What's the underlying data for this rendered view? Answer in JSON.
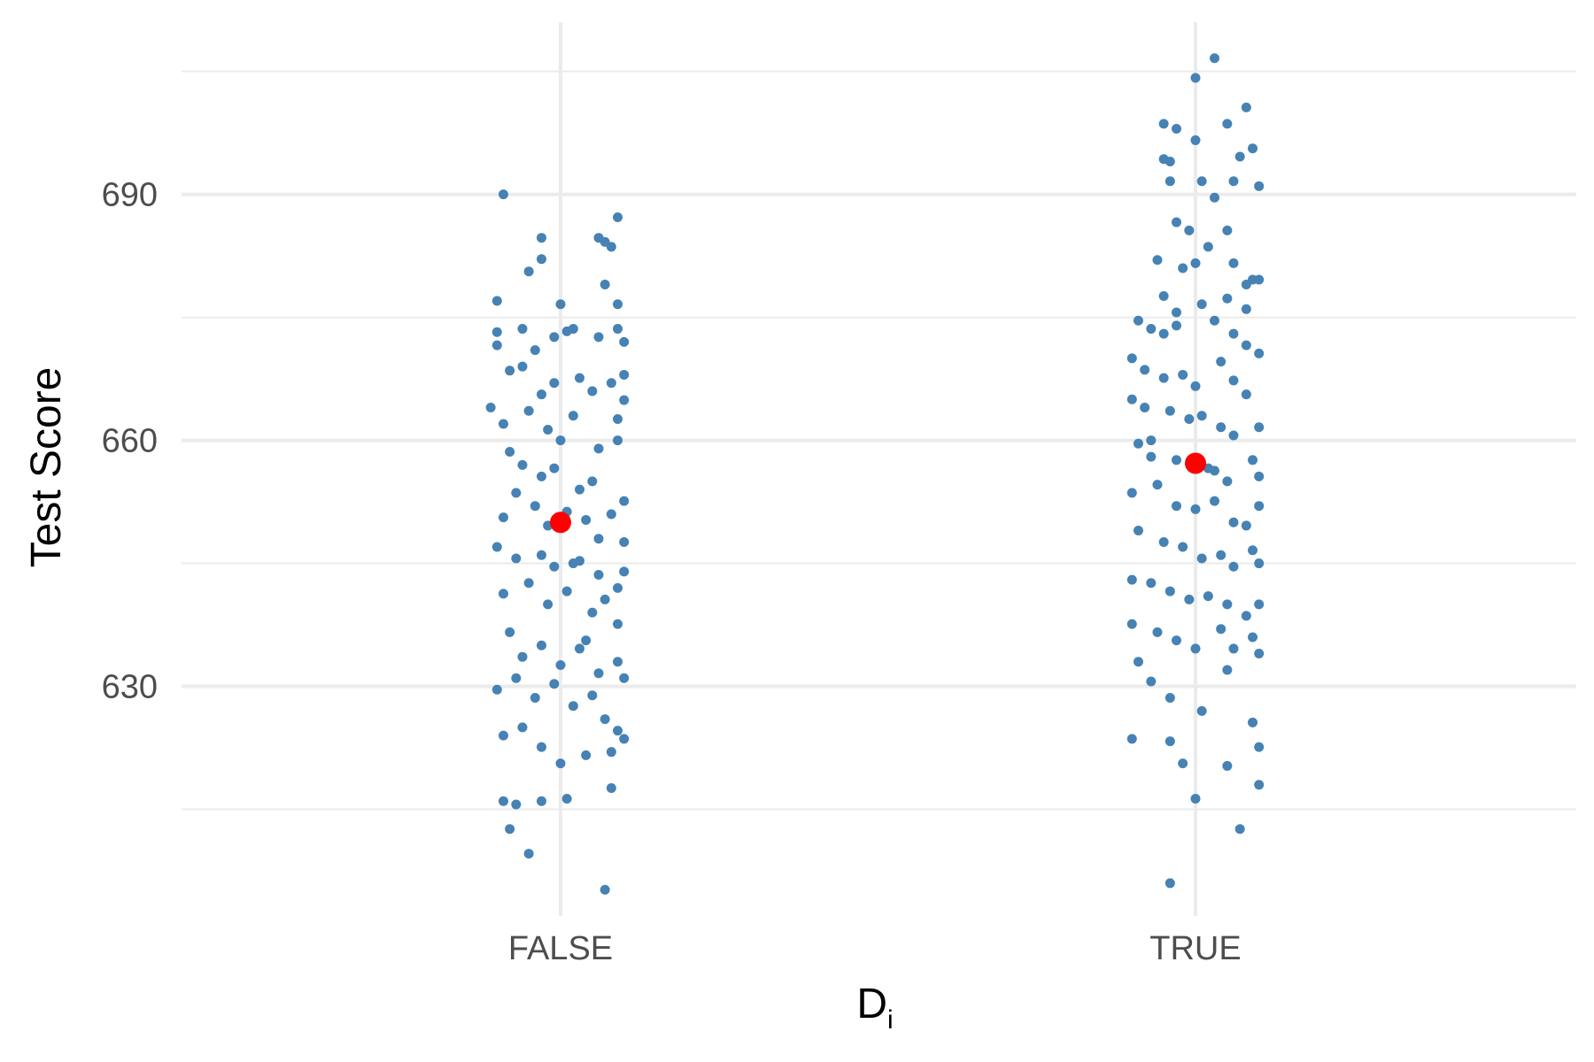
{
  "chart_data": {
    "type": "scatter",
    "title": "",
    "xlabel": "D",
    "xlabel_subscript": "i",
    "ylabel": "Test Score",
    "categories": [
      "FALSE",
      "TRUE"
    ],
    "yticks": [
      630,
      660,
      690
    ],
    "ylim": [
      602,
      711
    ],
    "grid": true,
    "legend": "none",
    "point_color": "#4682B4",
    "mean_color": "#FF0000",
    "means": [
      650.0,
      657.2
    ],
    "series": [
      {
        "category": "FALSE",
        "points": [
          [
            -0.09,
            690.0
          ],
          [
            -0.05,
            680.6
          ],
          [
            -0.03,
            684.7
          ],
          [
            -0.03,
            682.1
          ],
          [
            0.06,
            684.7
          ],
          [
            0.07,
            684.2
          ],
          [
            0.08,
            683.6
          ],
          [
            0.09,
            687.2
          ],
          [
            -0.1,
            677.0
          ],
          [
            0.0,
            676.6
          ],
          [
            0.07,
            679.0
          ],
          [
            0.09,
            676.6
          ],
          [
            -0.1,
            673.2
          ],
          [
            -0.1,
            671.6
          ],
          [
            -0.06,
            673.6
          ],
          [
            -0.04,
            671.0
          ],
          [
            -0.01,
            672.6
          ],
          [
            0.02,
            673.6
          ],
          [
            0.01,
            673.3
          ],
          [
            0.06,
            672.6
          ],
          [
            0.09,
            673.6
          ],
          [
            0.1,
            672.0
          ],
          [
            0.1,
            668.0
          ],
          [
            0.08,
            667.0
          ],
          [
            -0.08,
            668.5
          ],
          [
            -0.06,
            669.0
          ],
          [
            -0.03,
            665.6
          ],
          [
            -0.01,
            667.0
          ],
          [
            0.03,
            667.6
          ],
          [
            0.05,
            666.0
          ],
          [
            0.1,
            664.9
          ],
          [
            0.09,
            662.6
          ],
          [
            -0.11,
            664.0
          ],
          [
            -0.09,
            662.0
          ],
          [
            -0.05,
            663.6
          ],
          [
            -0.02,
            661.3
          ],
          [
            0.0,
            660.0
          ],
          [
            0.02,
            663.0
          ],
          [
            0.06,
            659.0
          ],
          [
            0.09,
            660.0
          ],
          [
            -0.08,
            658.6
          ],
          [
            -0.06,
            657.0
          ],
          [
            -0.03,
            655.6
          ],
          [
            -0.01,
            656.6
          ],
          [
            0.03,
            654.0
          ],
          [
            0.05,
            655.0
          ],
          [
            0.08,
            651.0
          ],
          [
            0.1,
            652.6
          ],
          [
            -0.09,
            650.6
          ],
          [
            -0.07,
            653.6
          ],
          [
            -0.04,
            652.0
          ],
          [
            -0.02,
            649.6
          ],
          [
            0.01,
            651.3
          ],
          [
            0.04,
            650.3
          ],
          [
            0.06,
            648.0
          ],
          [
            0.1,
            647.6
          ],
          [
            -0.1,
            647.0
          ],
          [
            -0.07,
            645.6
          ],
          [
            -0.03,
            646.0
          ],
          [
            -0.01,
            644.6
          ],
          [
            0.03,
            645.3
          ],
          [
            0.06,
            643.6
          ],
          [
            0.09,
            642.0
          ],
          [
            0.1,
            644.0
          ],
          [
            -0.09,
            641.3
          ],
          [
            -0.05,
            642.6
          ],
          [
            -0.02,
            640.0
          ],
          [
            0.01,
            641.6
          ],
          [
            0.05,
            639.0
          ],
          [
            0.07,
            640.6
          ],
          [
            0.09,
            637.6
          ],
          [
            0.04,
            635.6
          ],
          [
            -0.08,
            636.6
          ],
          [
            -0.06,
            633.6
          ],
          [
            -0.03,
            635.0
          ],
          [
            0.0,
            632.6
          ],
          [
            0.03,
            634.6
          ],
          [
            0.06,
            631.6
          ],
          [
            0.09,
            633.0
          ],
          [
            0.1,
            631.0
          ],
          [
            -0.1,
            629.6
          ],
          [
            -0.07,
            631.0
          ],
          [
            -0.04,
            628.6
          ],
          [
            -0.01,
            630.3
          ],
          [
            0.02,
            627.6
          ],
          [
            0.05,
            628.9
          ],
          [
            0.07,
            626.0
          ],
          [
            0.09,
            624.6
          ],
          [
            -0.09,
            624.0
          ],
          [
            -0.06,
            625.0
          ],
          [
            -0.03,
            622.6
          ],
          [
            0.0,
            620.6
          ],
          [
            0.04,
            621.6
          ],
          [
            0.08,
            622.0
          ],
          [
            0.1,
            623.6
          ],
          [
            0.08,
            617.6
          ],
          [
            -0.09,
            616.0
          ],
          [
            -0.07,
            615.6
          ],
          [
            -0.03,
            616.0
          ],
          [
            0.01,
            616.3
          ],
          [
            -0.08,
            612.6
          ],
          [
            -0.05,
            609.6
          ],
          [
            0.07,
            605.2
          ],
          [
            0.02,
            645.0
          ]
        ]
      },
      {
        "category": "TRUE",
        "points": [
          [
            0.03,
            706.6
          ],
          [
            0.0,
            704.2
          ],
          [
            0.08,
            700.6
          ],
          [
            0.05,
            698.6
          ],
          [
            -0.05,
            698.6
          ],
          [
            -0.03,
            698.0
          ],
          [
            0.0,
            696.6
          ],
          [
            0.09,
            695.6
          ],
          [
            0.07,
            694.6
          ],
          [
            -0.05,
            694.3
          ],
          [
            -0.04,
            694.0
          ],
          [
            -0.04,
            691.6
          ],
          [
            0.01,
            691.6
          ],
          [
            0.06,
            691.6
          ],
          [
            0.1,
            691.0
          ],
          [
            0.03,
            689.6
          ],
          [
            -0.03,
            686.6
          ],
          [
            -0.01,
            685.6
          ],
          [
            0.05,
            685.6
          ],
          [
            0.02,
            683.6
          ],
          [
            -0.06,
            682.0
          ],
          [
            0.0,
            681.6
          ],
          [
            0.06,
            681.6
          ],
          [
            -0.02,
            681.0
          ],
          [
            0.09,
            679.6
          ],
          [
            0.08,
            679.0
          ],
          [
            0.1,
            679.6
          ],
          [
            -0.05,
            677.6
          ],
          [
            -0.03,
            675.6
          ],
          [
            0.01,
            676.6
          ],
          [
            0.05,
            677.3
          ],
          [
            0.08,
            676.0
          ],
          [
            -0.09,
            674.6
          ],
          [
            -0.07,
            673.6
          ],
          [
            -0.05,
            673.0
          ],
          [
            -0.03,
            674.0
          ],
          [
            0.03,
            674.6
          ],
          [
            0.06,
            673.0
          ],
          [
            0.08,
            671.6
          ],
          [
            0.1,
            670.6
          ],
          [
            -0.1,
            670.0
          ],
          [
            -0.08,
            668.6
          ],
          [
            -0.05,
            667.6
          ],
          [
            -0.02,
            668.0
          ],
          [
            0.0,
            666.6
          ],
          [
            0.04,
            669.6
          ],
          [
            0.06,
            667.3
          ],
          [
            0.08,
            665.6
          ],
          [
            -0.1,
            665.0
          ],
          [
            -0.08,
            664.0
          ],
          [
            -0.04,
            663.6
          ],
          [
            -0.01,
            662.6
          ],
          [
            0.01,
            663.0
          ],
          [
            0.04,
            661.6
          ],
          [
            0.06,
            660.6
          ],
          [
            0.1,
            661.6
          ],
          [
            -0.09,
            659.6
          ],
          [
            -0.07,
            658.0
          ],
          [
            -0.03,
            657.6
          ],
          [
            0.02,
            656.6
          ],
          [
            0.03,
            656.3
          ],
          [
            0.05,
            655.0
          ],
          [
            0.09,
            657.6
          ],
          [
            0.1,
            655.6
          ],
          [
            -0.1,
            653.6
          ],
          [
            -0.06,
            654.6
          ],
          [
            -0.03,
            652.0
          ],
          [
            0.0,
            651.6
          ],
          [
            0.03,
            652.6
          ],
          [
            0.06,
            650.0
          ],
          [
            0.08,
            649.6
          ],
          [
            0.1,
            652.0
          ],
          [
            -0.09,
            649.0
          ],
          [
            -0.05,
            647.6
          ],
          [
            -0.02,
            647.0
          ],
          [
            0.01,
            645.6
          ],
          [
            0.04,
            646.0
          ],
          [
            0.06,
            644.6
          ],
          [
            0.09,
            646.6
          ],
          [
            0.1,
            645.0
          ],
          [
            -0.1,
            643.0
          ],
          [
            -0.07,
            642.6
          ],
          [
            -0.04,
            641.6
          ],
          [
            -0.01,
            640.6
          ],
          [
            0.02,
            641.0
          ],
          [
            0.05,
            640.0
          ],
          [
            0.08,
            638.6
          ],
          [
            0.1,
            640.0
          ],
          [
            -0.1,
            637.6
          ],
          [
            -0.06,
            636.6
          ],
          [
            -0.03,
            635.6
          ],
          [
            0.0,
            634.6
          ],
          [
            0.04,
            637.0
          ],
          [
            0.06,
            634.6
          ],
          [
            0.09,
            636.0
          ],
          [
            0.1,
            634.0
          ],
          [
            -0.09,
            633.0
          ],
          [
            -0.07,
            630.6
          ],
          [
            -0.04,
            628.6
          ],
          [
            0.01,
            627.0
          ],
          [
            -0.1,
            623.6
          ],
          [
            -0.04,
            623.3
          ],
          [
            -0.02,
            620.6
          ],
          [
            0.05,
            620.3
          ],
          [
            0.09,
            625.6
          ],
          [
            0.1,
            622.6
          ],
          [
            0.0,
            616.3
          ],
          [
            0.1,
            618.0
          ],
          [
            0.07,
            612.6
          ],
          [
            -0.04,
            606.0
          ],
          [
            0.05,
            632.0
          ],
          [
            -0.07,
            660.0
          ]
        ]
      }
    ]
  }
}
